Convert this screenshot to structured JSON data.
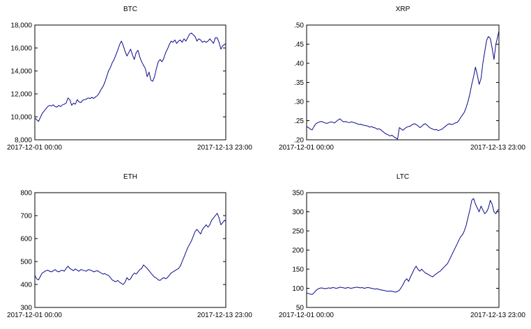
{
  "colors": {
    "line": "#0a0a8c",
    "frame": "#000000",
    "text": "#000000",
    "background": "#ffffff"
  },
  "chart_data": [
    {
      "type": "line",
      "title": "BTC",
      "x_start_label": "2017-12-01 00:00",
      "x_end_label": "2017-12-13 23:00",
      "ylim": [
        8000,
        18000
      ],
      "y_ticks": [
        8000,
        10000,
        12000,
        14000,
        16000,
        18000
      ],
      "y_tick_labels": [
        "8,000",
        "10,000",
        "12,000",
        "14,000",
        "16,000",
        "18,000"
      ],
      "grid": false,
      "series": [
        {
          "x": [
            0,
            3,
            6,
            9,
            12,
            15,
            18,
            21,
            24,
            27,
            30,
            33,
            36,
            39,
            42,
            45,
            48,
            51,
            54,
            57,
            60,
            63,
            66,
            69,
            72,
            75,
            78,
            81,
            84,
            87,
            90,
            93,
            96,
            99,
            102,
            105,
            108,
            111,
            114,
            117,
            120,
            123,
            126,
            129,
            132,
            135,
            138,
            141,
            144,
            147,
            150,
            153,
            156,
            159,
            162,
            165,
            168,
            171,
            174,
            177,
            180,
            183,
            186,
            189,
            192,
            195,
            198,
            201,
            204,
            207,
            210,
            213,
            216,
            219,
            222,
            225,
            228,
            231,
            234,
            237,
            240,
            243,
            246,
            249,
            252,
            255,
            258,
            261,
            264,
            267,
            270,
            273,
            276,
            279,
            282,
            285,
            288,
            291,
            294,
            297,
            300,
            303,
            306,
            309,
            311
          ],
          "values": [
            9900,
            9750,
            9600,
            9950,
            10300,
            10500,
            10700,
            10900,
            11000,
            10950,
            11050,
            10900,
            10850,
            11000,
            10900,
            11050,
            11100,
            11200,
            11650,
            11500,
            11000,
            11200,
            11100,
            11500,
            11300,
            11250,
            11450,
            11500,
            11550,
            11650,
            11600,
            11700,
            11600,
            11750,
            11850,
            12100,
            12400,
            12650,
            13000,
            13500,
            14000,
            14300,
            14700,
            15000,
            15400,
            15800,
            16300,
            16600,
            16200,
            15700,
            15300,
            15600,
            15900,
            15400,
            15000,
            15600,
            15800,
            15200,
            14800,
            14500,
            14200,
            13500,
            13900,
            13200,
            13100,
            13500,
            14200,
            14800,
            15000,
            14800,
            15100,
            15600,
            15900,
            16300,
            16600,
            16500,
            16700,
            16400,
            16600,
            16700,
            16500,
            16800,
            16600,
            16900,
            17200,
            17300,
            17150,
            17000,
            16600,
            16800,
            16700,
            16500,
            16600,
            16500,
            16600,
            16800,
            16600,
            16400,
            16900,
            16900,
            16500,
            15900,
            16200,
            16300,
            16400
          ]
        }
      ]
    },
    {
      "type": "line",
      "title": "XRP",
      "x_start_label": "2017-12-01 00:00",
      "x_end_label": "2017-12-13 23:00",
      "ylim": [
        0.2,
        0.5
      ],
      "y_ticks": [
        0.2,
        0.25,
        0.3,
        0.35,
        0.4,
        0.45,
        0.5
      ],
      "y_tick_labels": [
        ".20",
        ".25",
        ".30",
        ".35",
        ".40",
        ".45",
        ".50"
      ],
      "grid": false,
      "series": [
        {
          "x": [
            0,
            3,
            6,
            9,
            12,
            15,
            18,
            21,
            24,
            27,
            30,
            33,
            36,
            39,
            42,
            45,
            48,
            51,
            54,
            57,
            60,
            63,
            66,
            69,
            72,
            75,
            78,
            81,
            84,
            87,
            90,
            93,
            96,
            99,
            102,
            105,
            108,
            111,
            114,
            117,
            120,
            123,
            126,
            129,
            132,
            135,
            138,
            141,
            144,
            147,
            150,
            153,
            156,
            159,
            162,
            165,
            168,
            171,
            174,
            177,
            180,
            183,
            186,
            189,
            192,
            195,
            198,
            201,
            204,
            207,
            210,
            213,
            216,
            219,
            222,
            225,
            228,
            231,
            234,
            237,
            240,
            243,
            246,
            249,
            252,
            255,
            258,
            261,
            264,
            267,
            270,
            273,
            276,
            279,
            282,
            285,
            288,
            291,
            294,
            297,
            300,
            303,
            306,
            309,
            311
          ],
          "values": [
            0.235,
            0.232,
            0.228,
            0.226,
            0.235,
            0.242,
            0.245,
            0.247,
            0.248,
            0.246,
            0.244,
            0.243,
            0.245,
            0.247,
            0.246,
            0.244,
            0.248,
            0.252,
            0.255,
            0.25,
            0.247,
            0.248,
            0.246,
            0.245,
            0.247,
            0.246,
            0.244,
            0.243,
            0.24,
            0.241,
            0.239,
            0.238,
            0.237,
            0.236,
            0.233,
            0.235,
            0.232,
            0.231,
            0.228,
            0.229,
            0.226,
            0.222,
            0.218,
            0.215,
            0.213,
            0.21,
            0.212,
            0.208,
            0.205,
            0.202,
            0.232,
            0.228,
            0.225,
            0.23,
            0.233,
            0.235,
            0.236,
            0.24,
            0.242,
            0.24,
            0.237,
            0.232,
            0.235,
            0.24,
            0.242,
            0.238,
            0.233,
            0.23,
            0.228,
            0.226,
            0.227,
            0.224,
            0.226,
            0.228,
            0.232,
            0.236,
            0.24,
            0.242,
            0.24,
            0.241,
            0.244,
            0.245,
            0.25,
            0.258,
            0.265,
            0.272,
            0.285,
            0.3,
            0.32,
            0.345,
            0.365,
            0.39,
            0.37,
            0.345,
            0.36,
            0.4,
            0.43,
            0.46,
            0.47,
            0.465,
            0.44,
            0.41,
            0.45,
            0.47,
            0.485
          ]
        }
      ]
    },
    {
      "type": "line",
      "title": "ETH",
      "x_start_label": "2017-12-01 00:00",
      "x_end_label": "2017-12-13 23:00",
      "ylim": [
        300,
        800
      ],
      "y_ticks": [
        300,
        400,
        500,
        600,
        700,
        800
      ],
      "y_tick_labels": [
        "300",
        "400",
        "500",
        "600",
        "700",
        "800"
      ],
      "grid": false,
      "series": [
        {
          "x": [
            0,
            3,
            6,
            9,
            12,
            15,
            18,
            21,
            24,
            27,
            30,
            33,
            36,
            39,
            42,
            45,
            48,
            51,
            54,
            57,
            60,
            63,
            66,
            69,
            72,
            75,
            78,
            81,
            84,
            87,
            90,
            93,
            96,
            99,
            102,
            105,
            108,
            111,
            114,
            117,
            120,
            123,
            126,
            129,
            132,
            135,
            138,
            141,
            144,
            147,
            150,
            153,
            156,
            159,
            162,
            165,
            168,
            171,
            174,
            177,
            180,
            183,
            186,
            189,
            192,
            195,
            198,
            201,
            204,
            207,
            210,
            213,
            216,
            219,
            222,
            225,
            228,
            231,
            234,
            237,
            240,
            243,
            246,
            249,
            252,
            255,
            258,
            261,
            264,
            267,
            270,
            273,
            276,
            279,
            282,
            285,
            288,
            291,
            294,
            297,
            300,
            303,
            306,
            309,
            311
          ],
          "values": [
            440,
            425,
            420,
            435,
            450,
            455,
            460,
            462,
            458,
            455,
            460,
            465,
            458,
            455,
            460,
            462,
            458,
            470,
            480,
            470,
            465,
            460,
            468,
            462,
            458,
            465,
            463,
            460,
            458,
            465,
            463,
            460,
            455,
            458,
            460,
            455,
            450,
            445,
            448,
            442,
            440,
            430,
            420,
            415,
            412,
            418,
            410,
            405,
            400,
            410,
            430,
            420,
            425,
            440,
            450,
            445,
            455,
            465,
            470,
            485,
            478,
            470,
            460,
            450,
            440,
            432,
            428,
            420,
            418,
            425,
            430,
            425,
            430,
            440,
            450,
            455,
            460,
            465,
            470,
            480,
            500,
            520,
            540,
            560,
            575,
            590,
            610,
            630,
            640,
            630,
            620,
            640,
            650,
            660,
            650,
            660,
            680,
            690,
            700,
            710,
            690,
            660,
            670,
            680,
            675
          ]
        }
      ]
    },
    {
      "type": "line",
      "title": "LTC",
      "x_start_label": "2017-12-01 00:00",
      "x_end_label": "2017-12-13 23:00",
      "ylim": [
        50,
        350
      ],
      "y_ticks": [
        50,
        100,
        150,
        200,
        250,
        300,
        350
      ],
      "y_tick_labels": [
        "50",
        "100",
        "150",
        "200",
        "250",
        "300",
        "350"
      ],
      "grid": false,
      "series": [
        {
          "x": [
            0,
            3,
            6,
            9,
            12,
            15,
            18,
            21,
            24,
            27,
            30,
            33,
            36,
            39,
            42,
            45,
            48,
            51,
            54,
            57,
            60,
            63,
            66,
            69,
            72,
            75,
            78,
            81,
            84,
            87,
            90,
            93,
            96,
            99,
            102,
            105,
            108,
            111,
            114,
            117,
            120,
            123,
            126,
            129,
            132,
            135,
            138,
            141,
            144,
            147,
            150,
            153,
            156,
            159,
            162,
            165,
            168,
            171,
            174,
            177,
            180,
            183,
            186,
            189,
            192,
            195,
            198,
            201,
            204,
            207,
            210,
            213,
            216,
            219,
            222,
            225,
            228,
            231,
            234,
            237,
            240,
            243,
            246,
            249,
            252,
            255,
            258,
            261,
            264,
            267,
            270,
            273,
            276,
            279,
            282,
            285,
            288,
            291,
            294,
            297,
            300,
            303,
            306,
            309,
            311
          ],
          "values": [
            88,
            86,
            85,
            84,
            88,
            94,
            98,
            100,
            101,
            100,
            99,
            100,
            101,
            100,
            102,
            101,
            100,
            101,
            103,
            102,
            101,
            100,
            102,
            101,
            100,
            101,
            102,
            103,
            102,
            101,
            102,
            100,
            101,
            102,
            101,
            100,
            99,
            98,
            99,
            97,
            96,
            95,
            94,
            93,
            92,
            93,
            92,
            91,
            90,
            92,
            95,
            102,
            110,
            120,
            125,
            118,
            130,
            140,
            150,
            158,
            150,
            145,
            150,
            145,
            140,
            138,
            135,
            132,
            130,
            135,
            138,
            142,
            145,
            150,
            155,
            160,
            165,
            175,
            185,
            195,
            205,
            215,
            225,
            235,
            240,
            250,
            265,
            285,
            305,
            330,
            335,
            320,
            310,
            300,
            315,
            305,
            295,
            300,
            310,
            330,
            320,
            300,
            295,
            305,
            305
          ]
        }
      ]
    }
  ]
}
